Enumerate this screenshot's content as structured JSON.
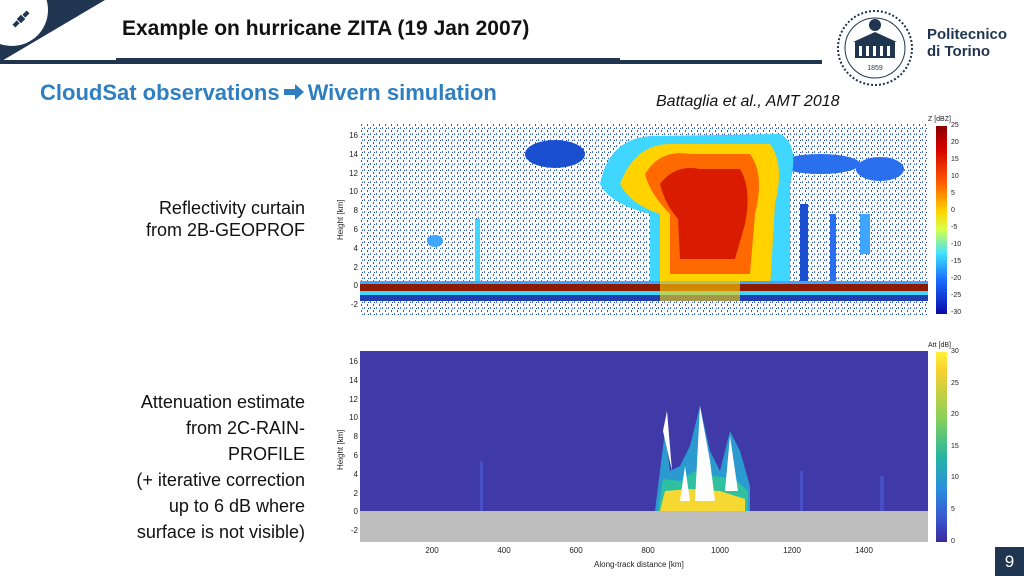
{
  "header": {
    "title": "Example on hurricane ZITA (19 Jan 2007)"
  },
  "logo": {
    "line1": "Politecnico",
    "line2": "di Torino",
    "year": "1859"
  },
  "subtitle": {
    "left": "CloudSat observations",
    "right": "Wivern simulation"
  },
  "citation": "Battaglia et al., AMT 2018",
  "panels": [
    {
      "description_lines": [
        "Reflectivity curtain",
        "from 2B-GEOPROF"
      ],
      "y_label": "Height [km]",
      "y_ticks": [
        "16",
        "14",
        "12",
        "10",
        "8",
        "6",
        "4",
        "2",
        "0",
        "-2"
      ],
      "colorbar_unit": "Z [dBZ]",
      "colorbar_ticks": [
        "25",
        "20",
        "15",
        "10",
        "5",
        "0",
        "-5",
        "-10",
        "-15",
        "-20",
        "-25",
        "-30"
      ]
    },
    {
      "description_lines": [
        "Attenuation estimate",
        "from 2C-RAIN-",
        "PROFILE",
        "(+ iterative correction",
        "up to 6 dB where",
        "surface is not visible)"
      ],
      "y_label": "Height [km]",
      "y_ticks": [
        "16",
        "14",
        "12",
        "10",
        "8",
        "6",
        "4",
        "2",
        "0",
        "-2"
      ],
      "x_ticks": [
        "200",
        "400",
        "600",
        "800",
        "1000",
        "1200",
        "1400"
      ],
      "x_label": "Along-track distance [km]",
      "colorbar_unit": "Att [dB]",
      "colorbar_ticks": [
        "30",
        "25",
        "20",
        "15",
        "10",
        "5",
        "0"
      ]
    }
  ],
  "page_number": "9",
  "colors": {
    "navy": "#1f3550",
    "accent_blue": "#2e7fc1"
  },
  "icons": {
    "corner": "satellite-icon",
    "subtitle_arrow": "arrow-right-icon",
    "logo": "politecnico-seal-icon"
  }
}
